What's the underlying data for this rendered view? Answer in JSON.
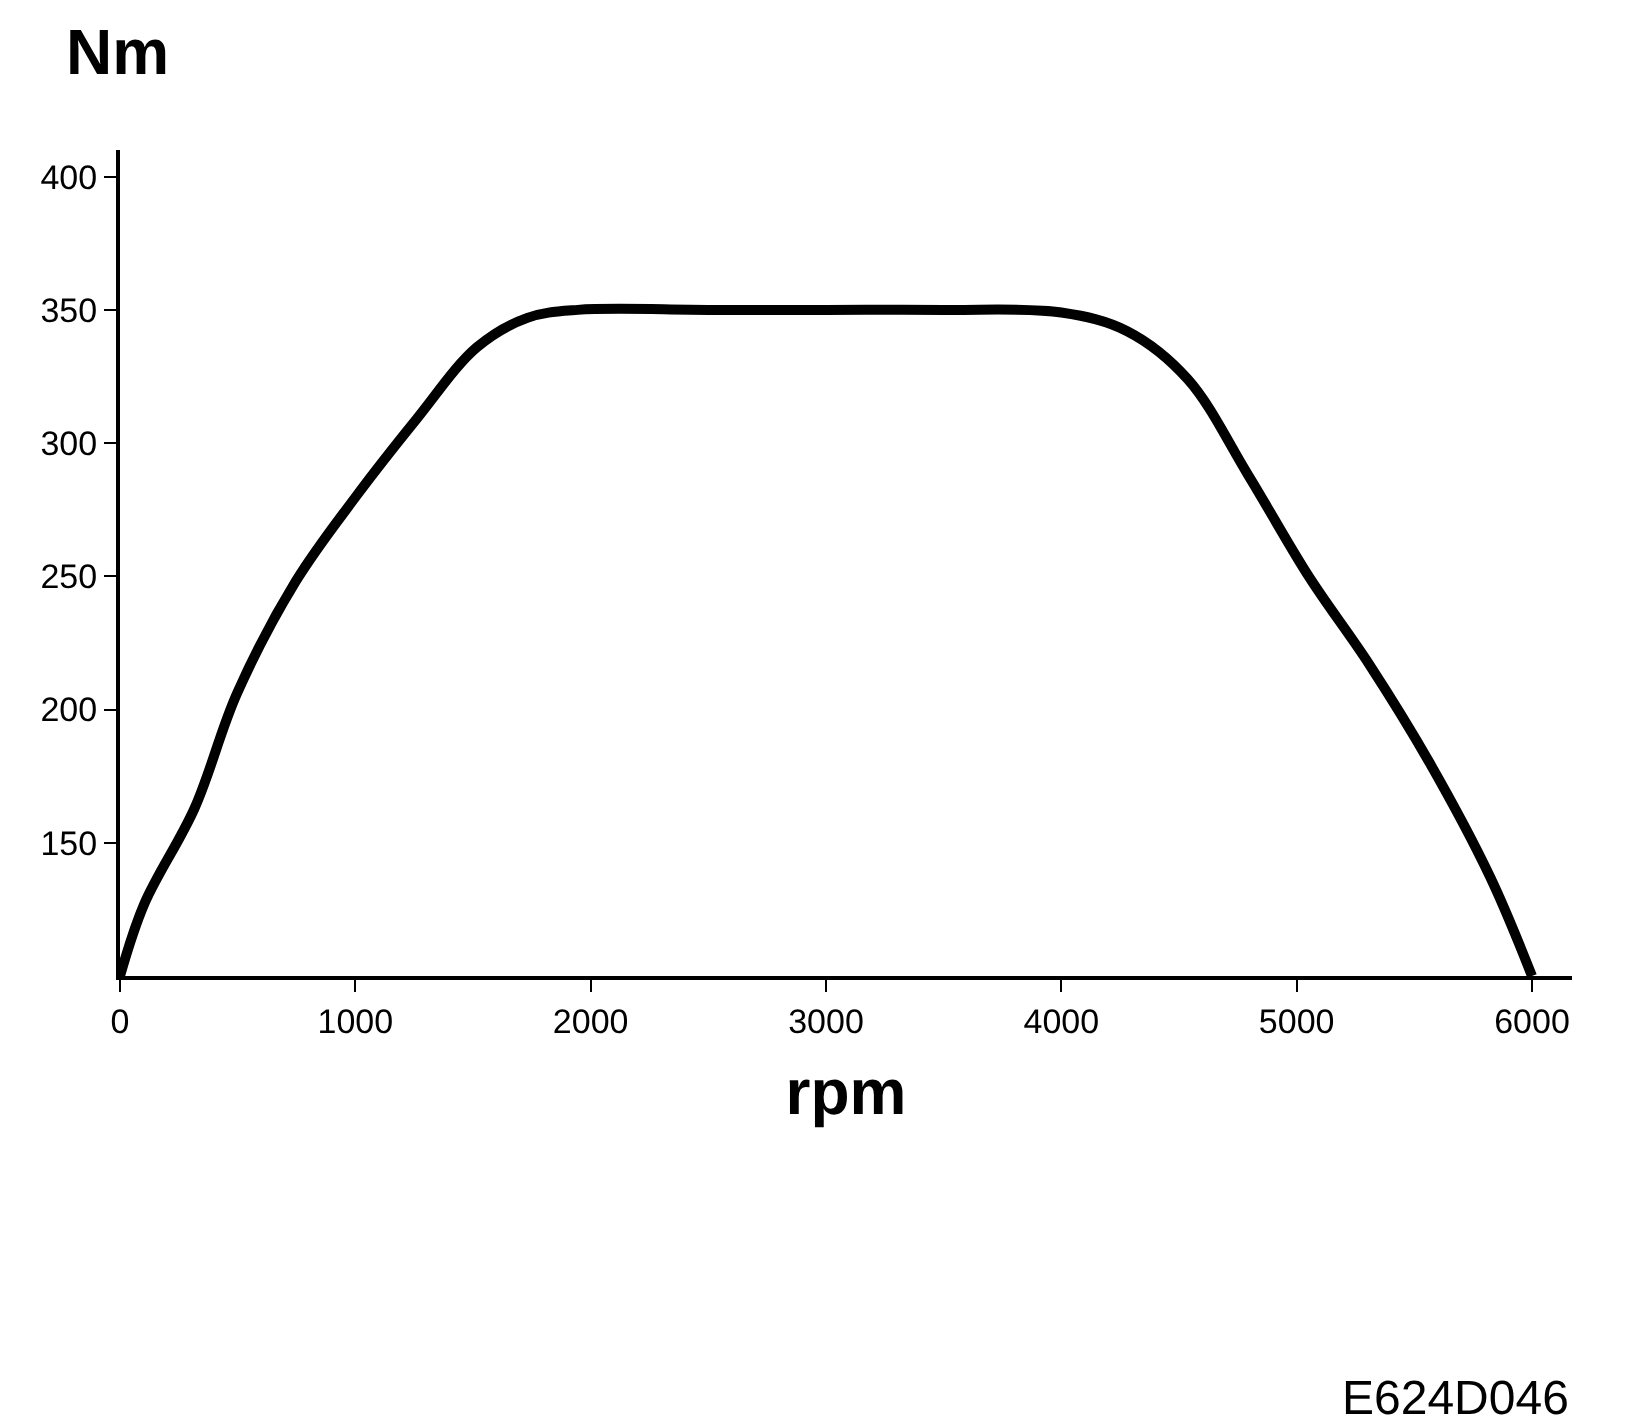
{
  "chart_data": {
    "type": "line",
    "xlabel": "rpm",
    "ylabel": "Nm",
    "x": [
      0,
      103,
      317,
      497,
      746,
      1003,
      1260,
      1517,
      1731,
      1945,
      2500,
      3000,
      3500,
      4000,
      4280,
      4537,
      4794,
      5051,
      5308,
      5565,
      5823,
      6000
    ],
    "series": [
      {
        "color": "#000000",
        "values": [
          100,
          127,
          163,
          206,
          248,
          280,
          309,
          336,
          347,
          350,
          350,
          350,
          350,
          349,
          342,
          324,
          288,
          250,
          217,
          180,
          137,
          100
        ]
      }
    ],
    "xlim": [
      0,
      6170
    ],
    "ylim": [
      100,
      410
    ],
    "xticks": [
      0,
      1000,
      2000,
      3000,
      4000,
      5000,
      6000
    ],
    "yticks": [
      150,
      200,
      250,
      300,
      350,
      400
    ],
    "legend": false,
    "marker": "none",
    "line_style": "solid",
    "annotations": [
      "E624D046"
    ]
  }
}
